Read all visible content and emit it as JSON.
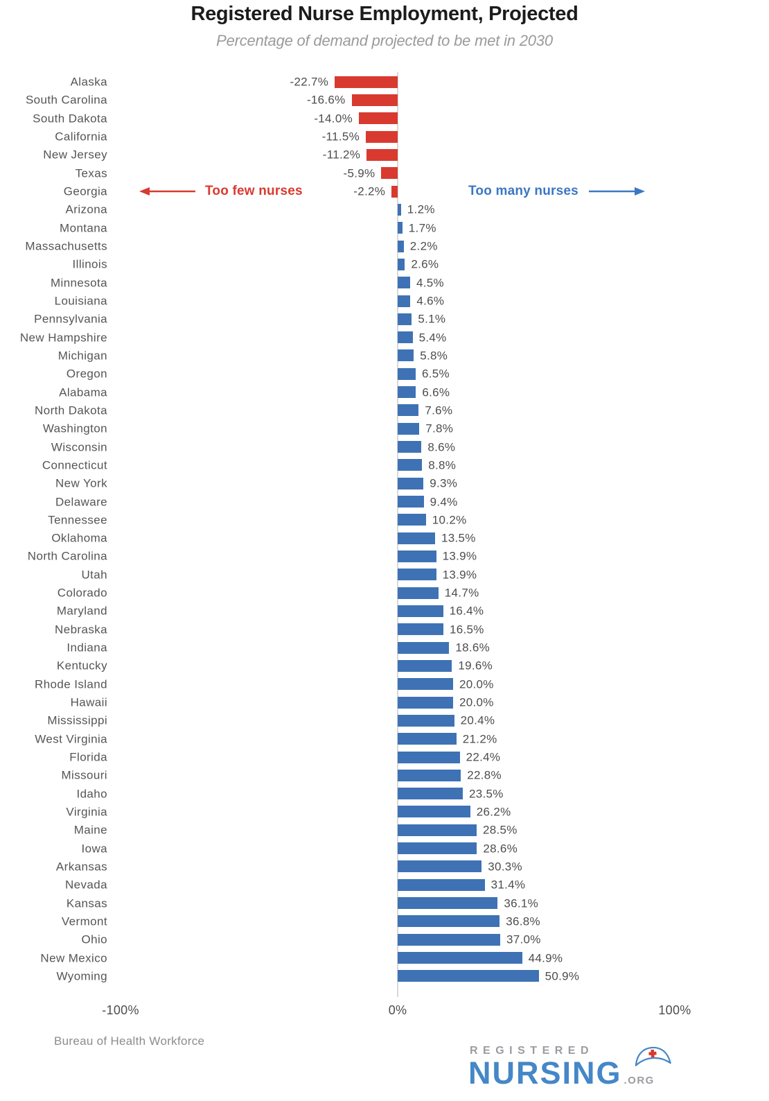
{
  "chart_data": {
    "type": "bar",
    "orientation": "horizontal",
    "title": "Registered Nurse Employment, Projected",
    "subtitle": "Percentage of demand projected to be met in 2030",
    "xlim": [
      -100,
      100
    ],
    "x_ticks": [
      {
        "value": -100,
        "label": "-100%"
      },
      {
        "value": 0,
        "label": "0%"
      },
      {
        "value": 100,
        "label": "100%"
      }
    ],
    "annotations": {
      "negative": "Too few nurses",
      "positive": "Too many nurses"
    },
    "colors": {
      "negative": "#d93a30",
      "positive": "#3e72b4",
      "negative_text": "#d93a30",
      "positive_text": "#3b77c4"
    },
    "categories": [
      "Alaska",
      "South Carolina",
      "South Dakota",
      "California",
      "New Jersey",
      "Texas",
      "Georgia",
      "Arizona",
      "Montana",
      "Massachusetts",
      "Illinois",
      "Minnesota",
      "Louisiana",
      "Pennsylvania",
      "New Hampshire",
      "Michigan",
      "Oregon",
      "Alabama",
      "North Dakota",
      "Washington",
      "Wisconsin",
      "Connecticut",
      "New York",
      "Delaware",
      "Tennessee",
      "Oklahoma",
      "North Carolina",
      "Utah",
      "Colorado",
      "Maryland",
      "Nebraska",
      "Indiana",
      "Kentucky",
      "Rhode Island",
      "Hawaii",
      "Mississippi",
      "West Virginia",
      "Florida",
      "Missouri",
      "Idaho",
      "Virginia",
      "Maine",
      "Iowa",
      "Arkansas",
      "Nevada",
      "Kansas",
      "Vermont",
      "Ohio",
      "New Mexico",
      "Wyoming"
    ],
    "values": [
      -22.7,
      -16.6,
      -14.0,
      -11.5,
      -11.2,
      -5.9,
      -2.2,
      1.2,
      1.7,
      2.2,
      2.6,
      4.5,
      4.6,
      5.1,
      5.4,
      5.8,
      6.5,
      6.6,
      7.6,
      7.8,
      8.6,
      8.8,
      9.3,
      9.4,
      10.2,
      13.5,
      13.9,
      13.9,
      14.7,
      16.4,
      16.5,
      18.6,
      19.6,
      20.0,
      20.0,
      20.4,
      21.2,
      22.4,
      22.8,
      23.5,
      26.2,
      28.5,
      28.6,
      30.3,
      31.4,
      36.1,
      36.8,
      37.0,
      44.9,
      50.9
    ]
  },
  "footer": {
    "source": "Bureau of Health Workforce",
    "logo": {
      "top": "REGISTERED",
      "main": "NURSING",
      "suffix": ".ORG"
    }
  }
}
